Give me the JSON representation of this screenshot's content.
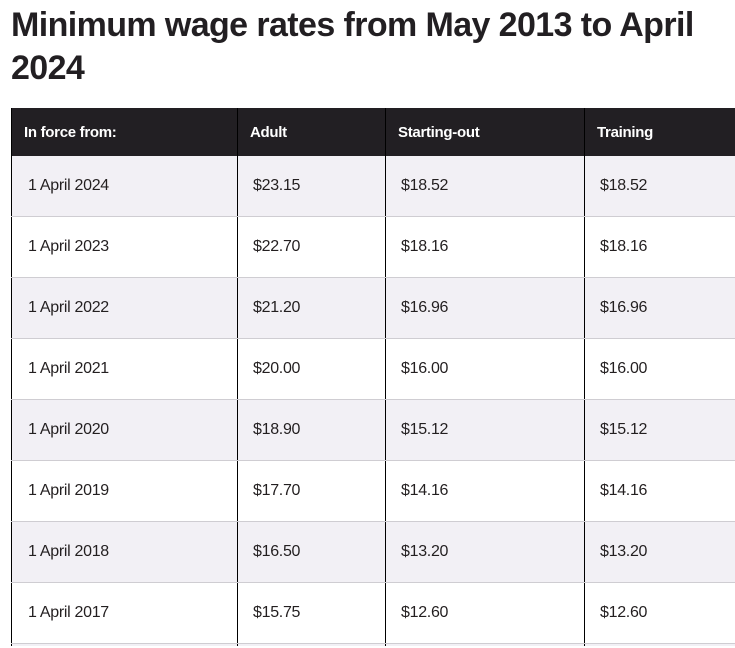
{
  "title": "Minimum wage rates from May 2013 to April 2024",
  "table": {
    "headers": [
      "In force from:",
      "Adult",
      "Starting-out",
      "Training"
    ],
    "rows": [
      [
        "1 April 2024",
        "$23.15",
        "$18.52",
        "$18.52"
      ],
      [
        "1 April 2023",
        "$22.70",
        "$18.16",
        "$18.16"
      ],
      [
        "1 April 2022",
        "$21.20",
        "$16.96",
        "$16.96"
      ],
      [
        "1 April 2021",
        "$20.00",
        "$16.00",
        "$16.00"
      ],
      [
        "1 April 2020",
        "$18.90",
        "$15.12",
        "$15.12"
      ],
      [
        "1 April 2019",
        "$17.70",
        "$14.16",
        "$14.16"
      ],
      [
        "1 April 2018",
        "$16.50",
        "$13.20",
        "$13.20"
      ],
      [
        "1 April 2017",
        "$15.75",
        "$12.60",
        "$12.60"
      ]
    ]
  },
  "colors": {
    "header_bg": "#221f23",
    "stripe": "#f2f0f5"
  }
}
